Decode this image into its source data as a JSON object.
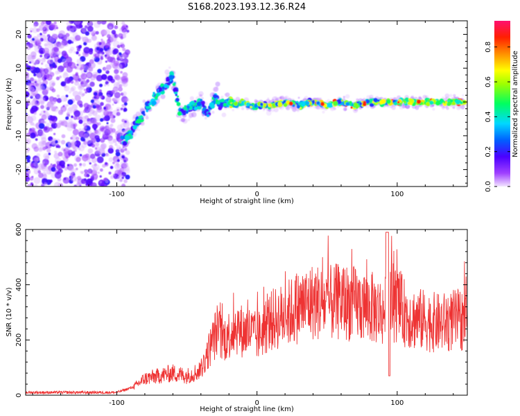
{
  "title": "S168.2023.193.12.36.R24",
  "chart_data": [
    {
      "type": "heatmap",
      "xlabel": "Height of straight line (km)",
      "ylabel": "Frequency (Hz)",
      "xlim": [
        -165,
        150
      ],
      "ylim": [
        -25,
        24
      ],
      "x_ticks": [
        -100,
        0,
        100
      ],
      "x_tick_labels": [
        "-100",
        "0",
        "100"
      ],
      "y_ticks": [
        -20,
        -10,
        0,
        10,
        20
      ],
      "y_tick_labels": [
        "-20",
        "-10",
        "0",
        "10",
        "20"
      ],
      "colorbar": {
        "label": "Normalized spectral amplitude",
        "range": [
          0,
          0.95
        ],
        "ticks": [
          0.0,
          0.2,
          0.4,
          0.6,
          0.8
        ],
        "tick_labels": [
          "0.0",
          "0.2",
          "0.4",
          "0.6",
          "0.8"
        ]
      },
      "ridge": {
        "x": [
          -95,
          -90,
          -85,
          -80,
          -75,
          -70,
          -65,
          -60,
          -55,
          -50,
          -45,
          -40,
          -35,
          -30,
          -25,
          -20,
          -15,
          -10,
          -5,
          0,
          10,
          20,
          30,
          40,
          50,
          60,
          70,
          80,
          90,
          100,
          110,
          120,
          130,
          140,
          148
        ],
        "y": [
          -11,
          -9,
          -6,
          -3,
          0,
          3,
          5,
          8,
          -3,
          -2,
          -1,
          0,
          -4,
          1,
          -1,
          0,
          -1,
          0,
          -1,
          -1,
          -1,
          0,
          -1,
          0,
          -1,
          0,
          -1,
          0,
          0,
          0,
          0,
          0,
          0,
          0,
          0
        ]
      }
    },
    {
      "type": "line",
      "xlabel": "Height of straight line (km)",
      "ylabel": "SNR (10 * v/v)",
      "xlim": [
        -165,
        150
      ],
      "ylim": [
        0,
        600
      ],
      "x_ticks": [
        -100,
        0,
        100
      ],
      "x_tick_labels": [
        "-100",
        "0",
        "100"
      ],
      "y_ticks": [
        0,
        200,
        400,
        600
      ],
      "y_tick_labels": [
        "0",
        "200",
        "400",
        "600"
      ],
      "color": "#ee3333",
      "envelope": {
        "x": [
          -165,
          -100,
          -88,
          -80,
          -70,
          -60,
          -50,
          -40,
          -33,
          -28,
          -25,
          -20,
          -15,
          -10,
          -5,
          0,
          10,
          20,
          30,
          40,
          50,
          60,
          70,
          80,
          90,
          95,
          100,
          105,
          110,
          120,
          130,
          140,
          150
        ],
        "y": [
          10,
          10,
          30,
          60,
          70,
          80,
          70,
          90,
          180,
          240,
          200,
          220,
          250,
          230,
          230,
          210,
          270,
          290,
          320,
          340,
          330,
          340,
          330,
          320,
          300,
          320,
          330,
          300,
          280,
          270,
          260,
          270,
          275
        ]
      }
    }
  ]
}
